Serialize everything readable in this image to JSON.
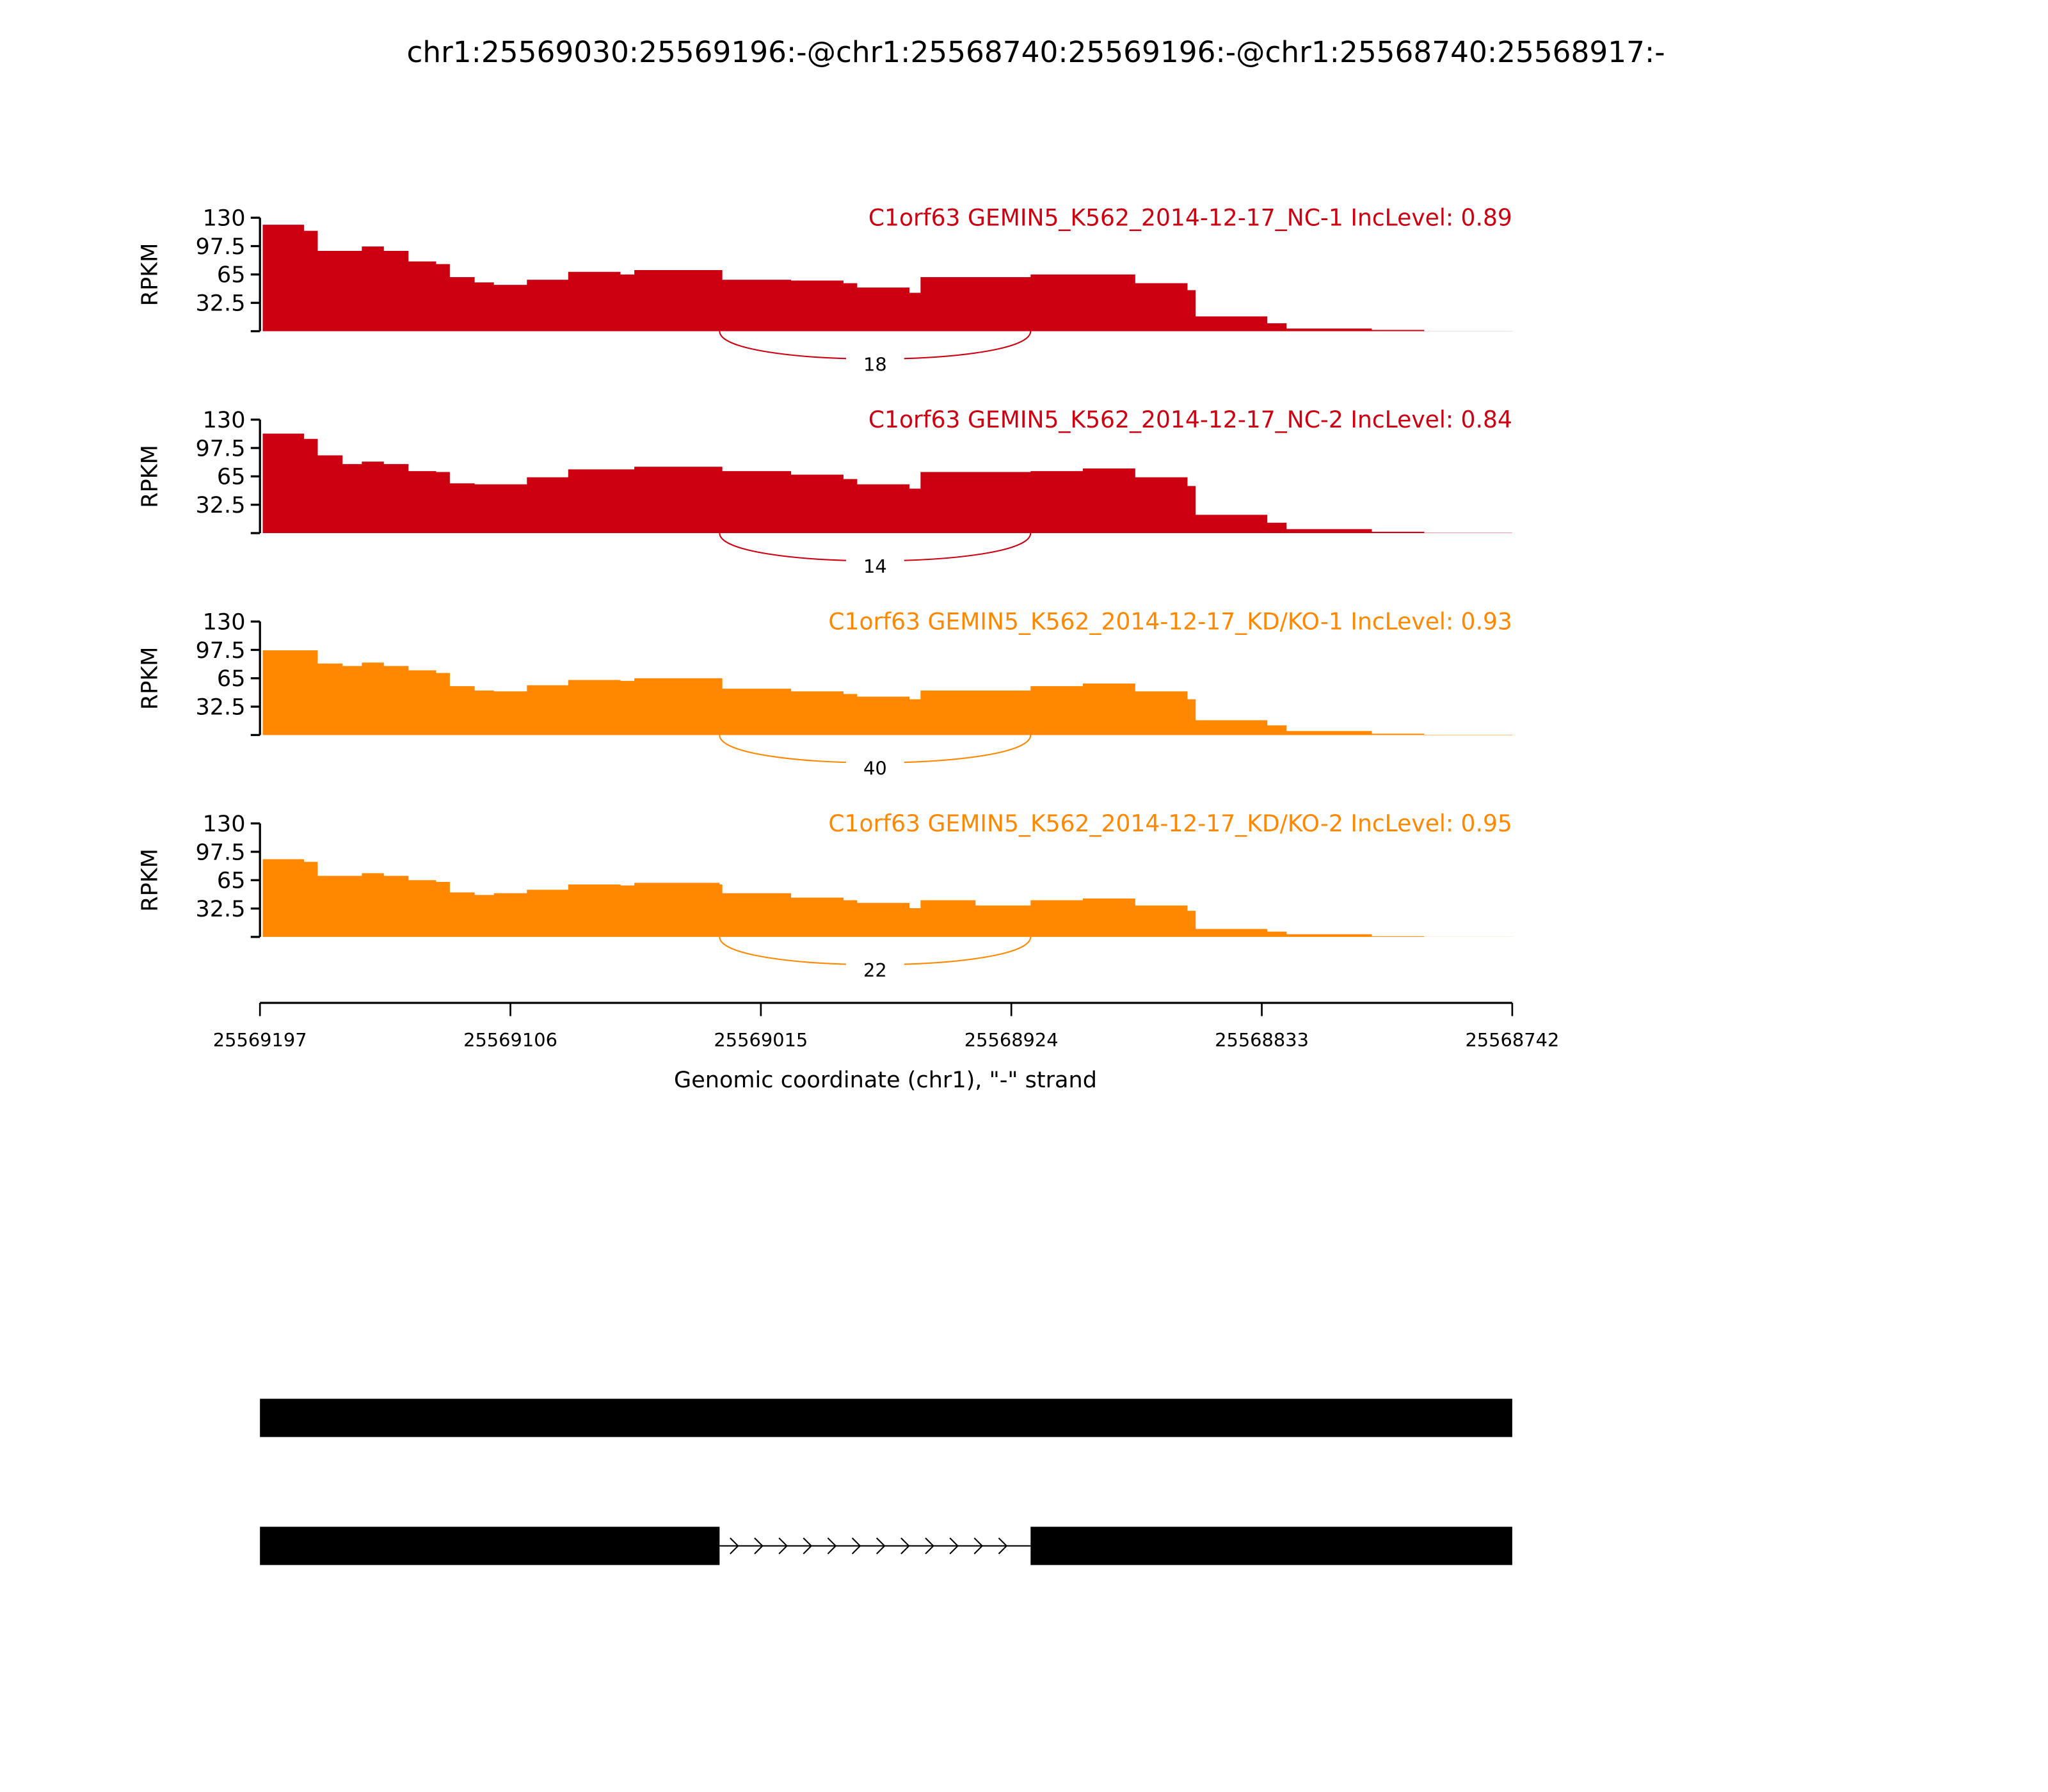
{
  "chart_data": {
    "type": "area",
    "title": "chr1:25569030:25569196:-@chr1:25568740:25569196:-@chr1:25568740:25568917:-",
    "xlabel": "Genomic coordinate (chr1), \"-\" strand",
    "ylabel": "RPKM",
    "xlim": [
      25569197,
      25568742
    ],
    "ylim": [
      0,
      130
    ],
    "x_ticks": [
      "25569197",
      "25569106",
      "25569015",
      "25568924",
      "25568833",
      "25568742"
    ],
    "y_ticks": [
      "130",
      "97.5",
      "65",
      "32.5"
    ],
    "y_tick_values": [
      130,
      97.5,
      65,
      32.5,
      0
    ],
    "x": [
      25569196,
      25569181,
      25569176,
      25569167,
      25569160,
      25569152,
      25569143,
      25569133,
      25569128,
      25569119,
      25569112,
      25569100,
      25569085,
      25569066,
      25569061,
      25569030,
      25569029,
      25569004,
      25568985,
      25568980,
      25568961,
      25568957,
      25568937,
      25568917,
      25568898,
      25568879,
      25568860,
      25568857,
      25568831,
      25568824,
      25568793,
      25568774,
      25568742
    ],
    "series": [
      {
        "name": "C1orf63 GEMIN5_K562_2014-12-17_NC-1 IncLevel: 0.89",
        "color": "#cc0011",
        "values": [
          122,
          115,
          92,
          92,
          97,
          92,
          80,
          77,
          62,
          56,
          53,
          59,
          68,
          65,
          70,
          70,
          59,
          58,
          55,
          50,
          44,
          62,
          62,
          65,
          65,
          55,
          47,
          17,
          9,
          3,
          1.5,
          0.2,
          0
        ],
        "junction": {
          "from": 25569030,
          "to": 25568917,
          "count": "18"
        }
      },
      {
        "name": "C1orf63 GEMIN5_K562_2014-12-17_NC-2 IncLevel: 0.84",
        "color": "#cc0011",
        "values": [
          114,
          108,
          89,
          79,
          82,
          79,
          71,
          70,
          57,
          56,
          56,
          64,
          73,
          73,
          76,
          76,
          71,
          67,
          62,
          56,
          51,
          70,
          70,
          71,
          74,
          64,
          54,
          21,
          12,
          4.5,
          1.5,
          0.3,
          0
        ],
        "junction": {
          "from": 25569030,
          "to": 25568917,
          "count": "14"
        }
      },
      {
        "name": "C1orf63 GEMIN5_K562_2014-12-17_KD/KO-1 IncLevel: 0.93",
        "color": "#ff8800",
        "values": [
          97,
          97,
          82,
          79,
          83,
          79,
          74,
          71,
          56,
          51,
          50,
          57,
          63,
          62,
          65,
          65,
          53,
          50,
          47,
          44,
          41,
          51,
          51,
          56,
          59,
          50,
          41,
          17,
          11,
          4.5,
          1.5,
          0.3,
          0
        ],
        "junction": {
          "from": 25569030,
          "to": 25568917,
          "count": "40"
        }
      },
      {
        "name": "C1orf63 GEMIN5_K562_2014-12-17_KD/KO-2 IncLevel: 0.95",
        "color": "#ff8800",
        "values": [
          89,
          86,
          70,
          70,
          73,
          70,
          65,
          63,
          51,
          48,
          50,
          54,
          60,
          59,
          62,
          60,
          50,
          45,
          42,
          39,
          33,
          42,
          36,
          42,
          44,
          36,
          30,
          9,
          6,
          3,
          0.8,
          0.2,
          0
        ],
        "junction": {
          "from": 25569030,
          "to": 25568917,
          "count": "22"
        }
      }
    ],
    "gene_models": [
      {
        "exons": [
          [
            25569197,
            25568742
          ]
        ]
      },
      {
        "exons": [
          [
            25569197,
            25569030
          ],
          [
            25568917,
            25568742
          ]
        ],
        "intron_strand": "-"
      }
    ]
  }
}
